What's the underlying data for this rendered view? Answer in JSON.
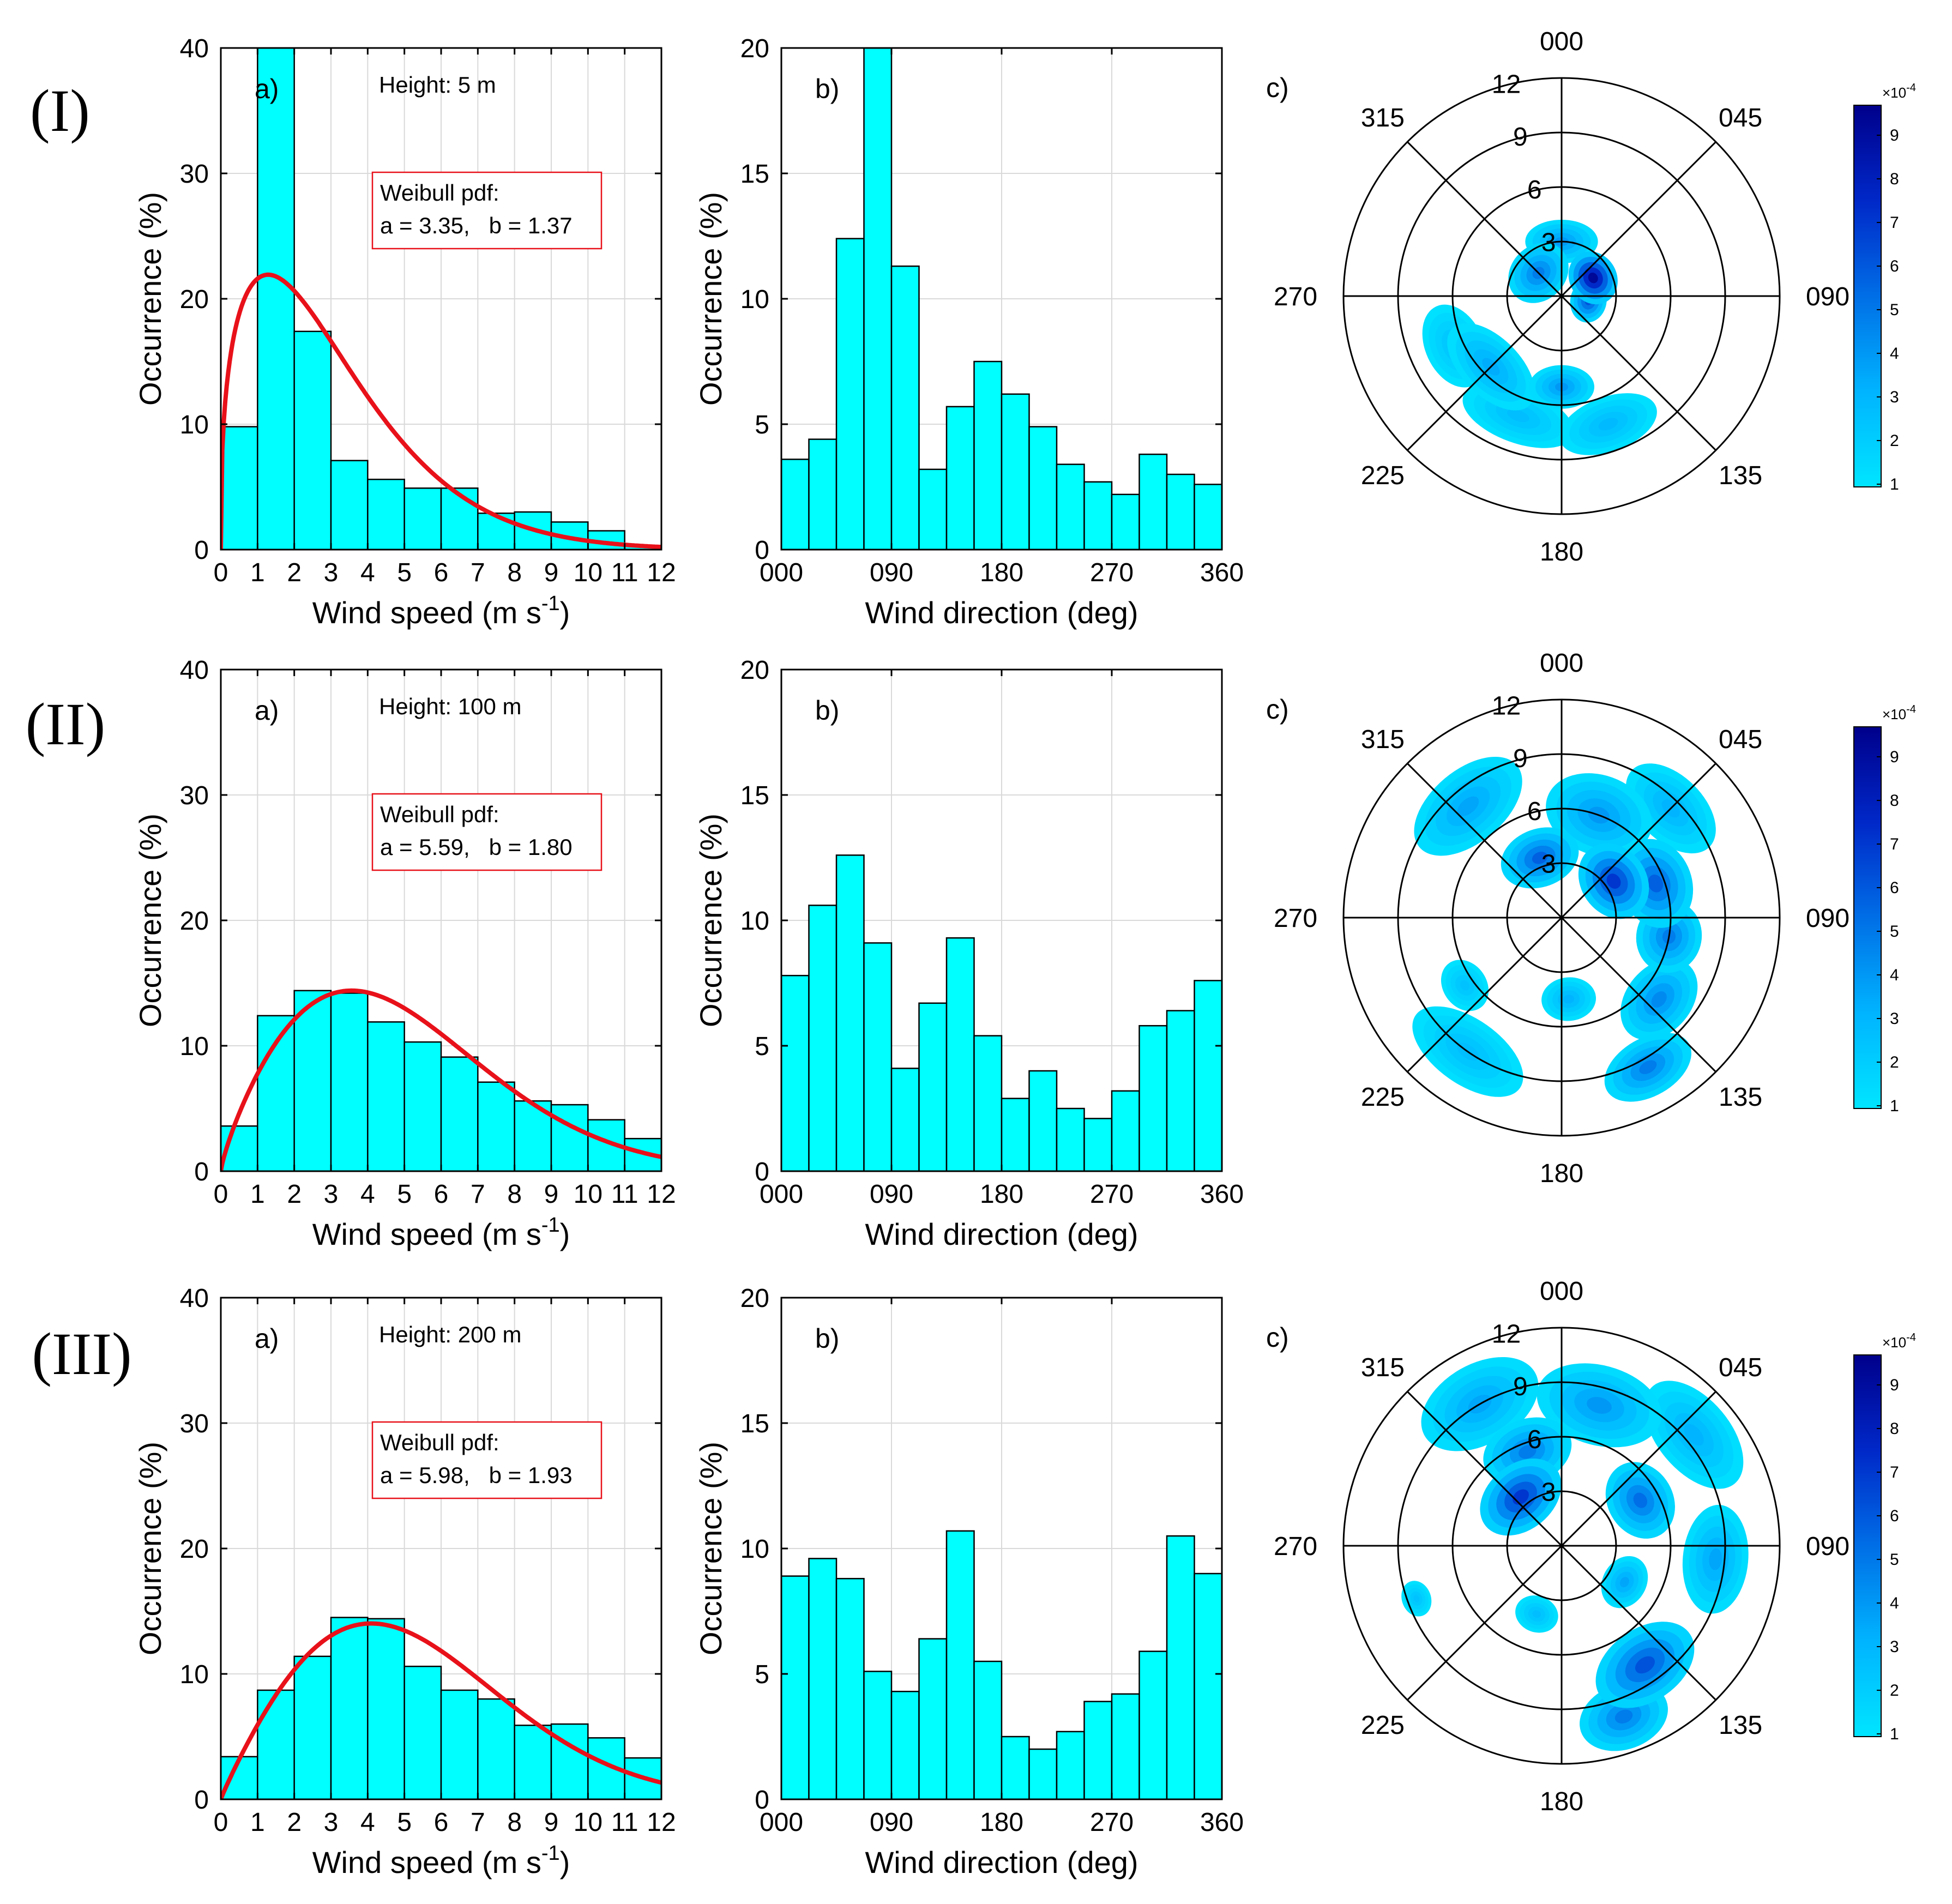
{
  "figure": {
    "row_labels": [
      "(I)",
      "(II)",
      "(III)"
    ]
  },
  "colors": {
    "bar_fill": "#00FFFF",
    "fit_line": "#E8111A",
    "grid": "#D9D9D9",
    "contour_light": "#00E5FF",
    "contour_dark": "#00008B"
  },
  "chart_data": [
    {
      "type": "bar",
      "panel": "a)",
      "row": "(I)",
      "height_text": "Height: 5 m",
      "fit_title": "Weibull pdf:",
      "fit_params": "a = 3.35,   b = 1.37",
      "weibull": {
        "a": 3.35,
        "b": 1.37
      },
      "bin_edges": [
        0,
        1,
        2,
        3,
        4,
        5,
        6,
        7,
        8,
        9,
        10,
        11,
        12
      ],
      "values": [
        9.8,
        40,
        17.4,
        7.1,
        5.6,
        4.9,
        4.9,
        2.9,
        3.0,
        2.2,
        1.5,
        0.3
      ],
      "xlabel": "Wind speed (m s",
      "xlabel_sup": "-1",
      "xlabel_end": ")",
      "ylabel": "Occurrence (%)",
      "xlim": [
        0,
        12
      ],
      "ylim": [
        0,
        40
      ],
      "xticks": [
        "0",
        "1",
        "2",
        "3",
        "4",
        "5",
        "6",
        "7",
        "8",
        "9",
        "10",
        "11",
        "12"
      ],
      "yticks": [
        "0",
        "10",
        "20",
        "30",
        "40"
      ]
    },
    {
      "type": "bar",
      "panel": "b)",
      "row": "(I)",
      "bin_edges": [
        0,
        22.5,
        45,
        67.5,
        90,
        112.5,
        135,
        157.5,
        180,
        202.5,
        225,
        247.5,
        270,
        292.5,
        315,
        337.5,
        360
      ],
      "values": [
        3.6,
        4.4,
        12.4,
        20,
        11.3,
        3.2,
        5.7,
        7.5,
        6.2,
        4.9,
        3.4,
        2.7,
        2.2,
        3.8,
        3.0,
        2.6
      ],
      "xlabel": "Wind direction (deg)",
      "ylabel": "Occurrence (%)",
      "xlim": [
        0,
        360
      ],
      "ylim": [
        0,
        20
      ],
      "xticks": [
        "000",
        "090",
        "180",
        "270",
        "360"
      ],
      "yticks": [
        "0",
        "5",
        "10",
        "15",
        "20"
      ]
    },
    {
      "type": "polar-contour",
      "panel": "c)",
      "row": "(I)",
      "direction_labels": [
        "000",
        "045",
        "090",
        "135",
        "180",
        "225",
        "270",
        "315"
      ],
      "radial_labels": [
        "3",
        "6",
        "9",
        "12"
      ],
      "rmax": 12,
      "colorbar": {
        "ticks": [
          "1",
          "2",
          "3",
          "4",
          "5",
          "6",
          "7",
          "8",
          "9"
        ],
        "exponent": "×10",
        "exponent_power": "-4"
      },
      "blobs": [
        {
          "dir": 225,
          "speed": 5.5,
          "level": 0.28,
          "rx": 3.0,
          "ry": 1.6
        },
        {
          "dir": 200,
          "speed": 7.0,
          "level": 0.2,
          "rx": 3.2,
          "ry": 1.5
        },
        {
          "dir": 160,
          "speed": 7.5,
          "level": 0.22,
          "rx": 2.8,
          "ry": 1.5
        },
        {
          "dir": 245,
          "speed": 6.5,
          "level": 0.18,
          "rx": 2.4,
          "ry": 1.6
        },
        {
          "dir": 180,
          "speed": 5.0,
          "level": 0.35,
          "rx": 1.8,
          "ry": 1.2
        },
        {
          "dir": 315,
          "speed": 1.8,
          "level": 0.45,
          "rx": 1.8,
          "ry": 1.5
        },
        {
          "dir": 0,
          "speed": 3.0,
          "level": 0.35,
          "rx": 2.0,
          "ry": 1.2
        },
        {
          "dir": 60,
          "speed": 2.0,
          "level": 0.95,
          "rx": 1.5,
          "ry": 1.3
        },
        {
          "dir": 100,
          "speed": 1.5,
          "level": 0.6,
          "rx": 1.2,
          "ry": 1.0
        }
      ]
    },
    {
      "type": "bar",
      "panel": "a)",
      "row": "(II)",
      "height_text": "Height: 100 m",
      "fit_title": "Weibull pdf:",
      "fit_params": "a = 5.59,   b = 1.80",
      "weibull": {
        "a": 5.59,
        "b": 1.8
      },
      "bin_edges": [
        0,
        1,
        2,
        3,
        4,
        5,
        6,
        7,
        8,
        9,
        10,
        11,
        12
      ],
      "values": [
        3.6,
        12.4,
        14.4,
        14.2,
        11.9,
        10.3,
        9.1,
        7.1,
        5.6,
        5.3,
        4.1,
        2.6
      ],
      "xlabel": "Wind speed (m s",
      "xlabel_sup": "-1",
      "xlabel_end": ")",
      "ylabel": "Occurrence (%)",
      "xlim": [
        0,
        12
      ],
      "ylim": [
        0,
        40
      ],
      "xticks": [
        "0",
        "1",
        "2",
        "3",
        "4",
        "5",
        "6",
        "7",
        "8",
        "9",
        "10",
        "11",
        "12"
      ],
      "yticks": [
        "0",
        "10",
        "20",
        "30",
        "40"
      ]
    },
    {
      "type": "bar",
      "panel": "b)",
      "row": "(II)",
      "bin_edges": [
        0,
        22.5,
        45,
        67.5,
        90,
        112.5,
        135,
        157.5,
        180,
        202.5,
        225,
        247.5,
        270,
        292.5,
        315,
        337.5,
        360
      ],
      "values": [
        7.8,
        10.6,
        12.6,
        9.1,
        4.1,
        6.7,
        9.3,
        5.4,
        2.9,
        4.0,
        2.5,
        2.1,
        3.2,
        5.8,
        6.4,
        7.6
      ],
      "xlabel": "Wind direction (deg)",
      "ylabel": "Occurrence (%)",
      "xlim": [
        0,
        360
      ],
      "ylim": [
        0,
        20
      ],
      "xticks": [
        "000",
        "090",
        "180",
        "270",
        "360"
      ],
      "yticks": [
        "0",
        "5",
        "10",
        "15",
        "20"
      ]
    },
    {
      "type": "polar-contour",
      "panel": "c)",
      "row": "(II)",
      "direction_labels": [
        "000",
        "045",
        "090",
        "135",
        "180",
        "225",
        "270",
        "315"
      ],
      "radial_labels": [
        "3",
        "6",
        "9",
        "12"
      ],
      "rmax": 12,
      "colorbar": {
        "ticks": [
          "1",
          "2",
          "3",
          "4",
          "5",
          "6",
          "7",
          "8",
          "9"
        ],
        "exponent": "×10",
        "exponent_power": "-4"
      },
      "blobs": [
        {
          "dir": 320,
          "speed": 8.0,
          "level": 0.3,
          "rx": 3.5,
          "ry": 2.0
        },
        {
          "dir": 20,
          "speed": 6.0,
          "level": 0.35,
          "rx": 3.0,
          "ry": 2.2
        },
        {
          "dir": 45,
          "speed": 8.5,
          "level": 0.25,
          "rx": 3.0,
          "ry": 1.8
        },
        {
          "dir": 70,
          "speed": 5.5,
          "level": 0.55,
          "rx": 2.5,
          "ry": 2.0
        },
        {
          "dir": 55,
          "speed": 3.5,
          "level": 0.7,
          "rx": 2.2,
          "ry": 1.8
        },
        {
          "dir": 340,
          "speed": 3.5,
          "level": 0.55,
          "rx": 2.2,
          "ry": 1.6
        },
        {
          "dir": 100,
          "speed": 6.0,
          "level": 0.45,
          "rx": 2.0,
          "ry": 1.8
        },
        {
          "dir": 130,
          "speed": 7.0,
          "level": 0.4,
          "rx": 2.5,
          "ry": 1.8
        },
        {
          "dir": 150,
          "speed": 9.5,
          "level": 0.45,
          "rx": 2.6,
          "ry": 1.6
        },
        {
          "dir": 215,
          "speed": 9.0,
          "level": 0.2,
          "rx": 3.5,
          "ry": 1.8
        },
        {
          "dir": 235,
          "speed": 6.5,
          "level": 0.18,
          "rx": 1.5,
          "ry": 1.2
        },
        {
          "dir": 175,
          "speed": 4.5,
          "level": 0.25,
          "rx": 1.5,
          "ry": 1.2
        }
      ]
    },
    {
      "type": "bar",
      "panel": "a)",
      "row": "(III)",
      "height_text": "Height: 200 m",
      "fit_title": "Weibull pdf:",
      "fit_params": "a = 5.98,   b = 1.93",
      "weibull": {
        "a": 5.98,
        "b": 1.93
      },
      "bin_edges": [
        0,
        1,
        2,
        3,
        4,
        5,
        6,
        7,
        8,
        9,
        10,
        11,
        12
      ],
      "values": [
        3.4,
        8.7,
        11.4,
        14.5,
        14.4,
        10.6,
        8.7,
        8.0,
        5.9,
        6.0,
        4.9,
        3.3
      ],
      "xlabel": "Wind speed (m s",
      "xlabel_sup": "-1",
      "xlabel_end": ")",
      "ylabel": "Occurrence (%)",
      "xlim": [
        0,
        12
      ],
      "ylim": [
        0,
        40
      ],
      "xticks": [
        "0",
        "1",
        "2",
        "3",
        "4",
        "5",
        "6",
        "7",
        "8",
        "9",
        "10",
        "11",
        "12"
      ],
      "yticks": [
        "0",
        "10",
        "20",
        "30",
        "40"
      ]
    },
    {
      "type": "bar",
      "panel": "b)",
      "row": "(III)",
      "bin_edges": [
        0,
        22.5,
        45,
        67.5,
        90,
        112.5,
        135,
        157.5,
        180,
        202.5,
        225,
        247.5,
        270,
        292.5,
        315,
        337.5,
        360
      ],
      "values": [
        8.9,
        9.6,
        8.8,
        5.1,
        4.3,
        6.4,
        10.7,
        5.5,
        2.5,
        2.0,
        2.7,
        3.9,
        4.2,
        5.9,
        10.5,
        9.0
      ],
      "xlabel": "Wind direction (deg)",
      "ylabel": "Occurrence (%)",
      "xlim": [
        0,
        360
      ],
      "ylim": [
        0,
        20
      ],
      "xticks": [
        "000",
        "090",
        "180",
        "270",
        "360"
      ],
      "yticks": [
        "0",
        "5",
        "10",
        "15",
        "20"
      ]
    },
    {
      "type": "polar-contour",
      "panel": "c)",
      "row": "(III)",
      "direction_labels": [
        "000",
        "045",
        "090",
        "135",
        "180",
        "225",
        "270",
        "315"
      ],
      "radial_labels": [
        "3",
        "6",
        "9",
        "12"
      ],
      "rmax": 12,
      "colorbar": {
        "ticks": [
          "1",
          "2",
          "3",
          "4",
          "5",
          "6",
          "7",
          "8",
          "9"
        ],
        "exponent": "×10",
        "exponent_power": "-4"
      },
      "blobs": [
        {
          "dir": 330,
          "speed": 9.0,
          "level": 0.3,
          "rx": 3.5,
          "ry": 2.2
        },
        {
          "dir": 15,
          "speed": 8.0,
          "level": 0.35,
          "rx": 3.5,
          "ry": 2.2
        },
        {
          "dir": 50,
          "speed": 9.5,
          "level": 0.25,
          "rx": 3.5,
          "ry": 2.0
        },
        {
          "dir": 320,
          "speed": 3.5,
          "level": 0.7,
          "rx": 2.5,
          "ry": 1.8
        },
        {
          "dir": 340,
          "speed": 5.5,
          "level": 0.45,
          "rx": 2.5,
          "ry": 1.8
        },
        {
          "dir": 60,
          "speed": 5.0,
          "level": 0.5,
          "rx": 2.2,
          "ry": 1.8
        },
        {
          "dir": 95,
          "speed": 8.5,
          "level": 0.3,
          "rx": 3.0,
          "ry": 1.8
        },
        {
          "dir": 145,
          "speed": 8.0,
          "level": 0.6,
          "rx": 3.0,
          "ry": 2.0
        },
        {
          "dir": 160,
          "speed": 10.0,
          "level": 0.45,
          "rx": 2.5,
          "ry": 1.8
        },
        {
          "dir": 250,
          "speed": 8.5,
          "level": 0.18,
          "rx": 1.0,
          "ry": 0.8
        },
        {
          "dir": 200,
          "speed": 4.0,
          "level": 0.2,
          "rx": 1.2,
          "ry": 1.0
        },
        {
          "dir": 120,
          "speed": 4.0,
          "level": 0.3,
          "rx": 1.5,
          "ry": 1.2
        }
      ]
    }
  ]
}
